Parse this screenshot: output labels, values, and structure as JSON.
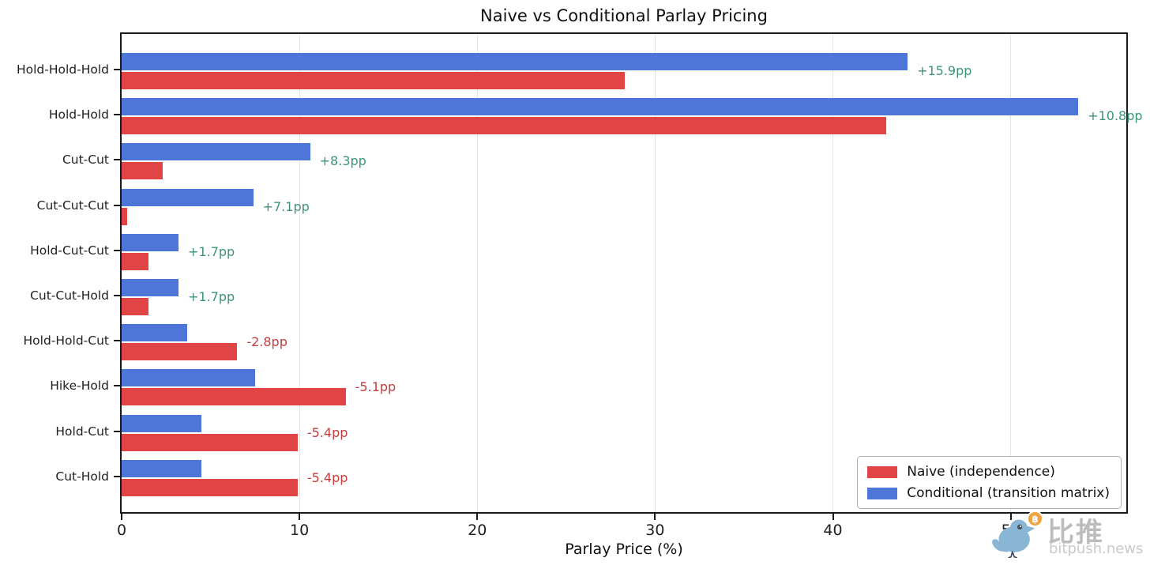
{
  "chart_data": {
    "type": "bar",
    "orientation": "horizontal",
    "title": "Naive vs Conditional Parlay Pricing",
    "xlabel": "Parlay Price (%)",
    "ylabel": "",
    "xlim": [
      0,
      56.5
    ],
    "xticks": [
      0,
      10,
      20,
      30,
      40,
      50
    ],
    "grid": "vertical-light",
    "legend_position": "lower right",
    "categories": [
      "Hold-Hold-Hold",
      "Hold-Hold",
      "Cut-Cut",
      "Cut-Cut-Cut",
      "Hold-Cut-Cut",
      "Cut-Cut-Hold",
      "Hold-Hold-Cut",
      "Hike-Hold",
      "Hold-Cut",
      "Cut-Hold"
    ],
    "series": [
      {
        "name": "Naive (independence)",
        "color": "#e04444",
        "values": [
          28.3,
          43.0,
          2.3,
          0.3,
          1.5,
          1.5,
          6.5,
          12.6,
          9.9,
          9.9
        ]
      },
      {
        "name": "Conditional (transition matrix)",
        "color": "#4d76d8",
        "values": [
          44.2,
          53.8,
          10.6,
          7.4,
          3.2,
          3.2,
          3.7,
          7.5,
          4.5,
          4.5
        ]
      }
    ],
    "delta_annotations": [
      "+15.9pp",
      "+10.8pp",
      "+8.3pp",
      "+7.1pp",
      "+1.7pp",
      "+1.7pp",
      "-2.8pp",
      "-5.1pp",
      "-5.4pp",
      "-5.4pp"
    ],
    "annotation_colors": {
      "positive": "#3c9478",
      "negative": "#c43c3c"
    }
  },
  "watermark": {
    "brand": "比推",
    "site": "bitpush.news",
    "badge_symbol": "฿",
    "badge_color": "#f0a33f",
    "bird_color": "#8ab6d6"
  }
}
